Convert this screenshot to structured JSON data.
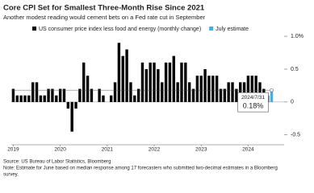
{
  "chart_data": {
    "type": "bar",
    "title": "Core CPI Set for Smallest Three-Month Rise Since 2021",
    "subtitle": "Another modest reading would cement bets on a Fed rate cut in September",
    "categories": [
      "2019",
      null,
      null,
      null,
      null,
      null,
      null,
      null,
      null,
      null,
      null,
      null,
      "2020",
      null,
      null,
      null,
      null,
      null,
      null,
      null,
      null,
      null,
      null,
      null,
      "2021",
      null,
      null,
      null,
      null,
      null,
      null,
      null,
      null,
      null,
      null,
      null,
      "2022",
      null,
      null,
      null,
      null,
      null,
      null,
      null,
      null,
      null,
      null,
      null,
      "2023",
      null,
      null,
      null,
      null,
      null,
      null,
      null,
      null,
      null,
      null,
      null,
      "2024",
      null,
      null,
      null,
      null,
      null,
      null
    ],
    "series": [
      {
        "name": "US consumer price index less food and energy (monthly change)",
        "color": "#000000",
        "values": [
          0.2,
          0.1,
          0.1,
          0.1,
          0.1,
          0.3,
          0.3,
          0.1,
          0.1,
          0.2,
          0.2,
          0.1,
          0.2,
          0.2,
          -0.1,
          -0.45,
          -0.1,
          0.2,
          0.6,
          0.4,
          0.2,
          0.0,
          0.2,
          0.1,
          0.0,
          0.1,
          0.3,
          0.9,
          0.7,
          0.8,
          0.3,
          0.1,
          0.2,
          0.6,
          0.5,
          0.6,
          0.6,
          0.5,
          0.3,
          0.6,
          0.6,
          0.7,
          0.3,
          0.6,
          0.6,
          0.3,
          0.2,
          0.4,
          0.4,
          0.5,
          0.4,
          0.4,
          0.4,
          0.2,
          0.2,
          0.3,
          0.3,
          0.2,
          0.3,
          0.3,
          0.4,
          0.4,
          0.4,
          0.3,
          0.2,
          0.1,
          null
        ]
      },
      {
        "name": "July estimate",
        "color": "#3fb0e8",
        "values": [
          null,
          null,
          null,
          null,
          null,
          null,
          null,
          null,
          null,
          null,
          null,
          null,
          null,
          null,
          null,
          null,
          null,
          null,
          null,
          null,
          null,
          null,
          null,
          null,
          null,
          null,
          null,
          null,
          null,
          null,
          null,
          null,
          null,
          null,
          null,
          null,
          null,
          null,
          null,
          null,
          null,
          null,
          null,
          null,
          null,
          null,
          null,
          null,
          null,
          null,
          null,
          null,
          null,
          null,
          null,
          null,
          null,
          null,
          null,
          null,
          null,
          null,
          null,
          null,
          null,
          null,
          0.18
        ],
        "value_labels": [
          null,
          null,
          null,
          null,
          null,
          null,
          null,
          null,
          null,
          null,
          null,
          null,
          null,
          null,
          null,
          null,
          null,
          null,
          null,
          null,
          null,
          null,
          null,
          null,
          null,
          null,
          null,
          null,
          null,
          null,
          null,
          null,
          null,
          null,
          null,
          null,
          null,
          null,
          null,
          null,
          null,
          null,
          null,
          null,
          null,
          null,
          null,
          null,
          null,
          null,
          null,
          null,
          null,
          null,
          null,
          null,
          null,
          null,
          null,
          null,
          null,
          null,
          null,
          null,
          null,
          null,
          "0.18%"
        ]
      }
    ],
    "annotation": "2024/7/31",
    "ylim": [
      -0.65,
      1.05
    ],
    "yticks": [
      {
        "value": 1.0,
        "label": "1.0%"
      },
      0.5,
      0,
      -0.5
    ],
    "source": "Source: US Bureau of Labor Statistics, Bloomberg",
    "note": "Note: Estimate for June based on median response among 17 forecasters who submitted two-decimal estimates in a Bloomberg",
    "note_cont": "survey."
  }
}
